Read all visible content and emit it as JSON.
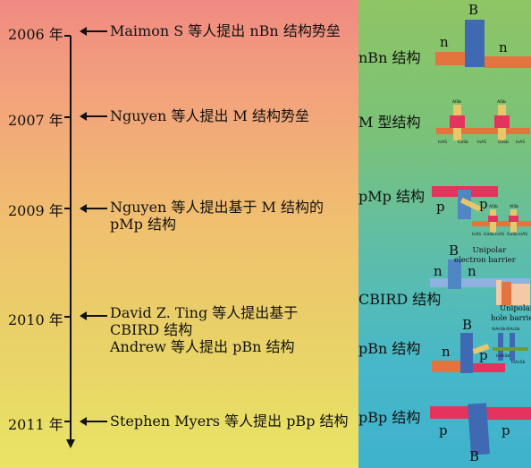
{
  "timeline": [
    {
      "year": "2006 年",
      "event": [
        "Maimon S 等人提出 nBn 结构势垒"
      ]
    },
    {
      "year": "2007 年",
      "event": [
        "Nguyen 等人提出 M 结构势垒"
      ]
    },
    {
      "year": "2009 年",
      "event": [
        "Nguyen 等人提出基于 M 结构的",
        "pMp 结构"
      ]
    },
    {
      "year": "2010 年",
      "event": [
        "David Z. Ting 等人提出基于",
        "CBIRD 结构",
        "Andrew 等人提出 pBn 结构"
      ]
    },
    {
      "year": "2011 年",
      "event": [
        "Stephen Myers 等人提出 pBp 结构"
      ]
    }
  ],
  "structures": {
    "nbn": {
      "label": "nBn 结构",
      "b": "B",
      "n_left": "n",
      "n_right": "n"
    },
    "m": {
      "label": "M 型结构",
      "layers": [
        "InAS",
        "GaSb",
        "InAS",
        "GaSb",
        "InAS"
      ],
      "alsb": "AlSb"
    },
    "pmp": {
      "label": "pMp 结构",
      "p_left": "p",
      "p_right": "p",
      "layers": [
        "InAS",
        "GaSb",
        "InAS",
        "GaSb",
        "InAS"
      ],
      "alsb": "AlSb"
    },
    "cbird": {
      "label": "CBIRD 结构",
      "b": "B",
      "n_left": "n",
      "n_right": "n",
      "ebarrier": [
        "Unipolar",
        "electron barrier"
      ],
      "hbarrier": [
        "Unipolar",
        "hole barrier"
      ],
      "layers": [
        "AlAsSb",
        "AlAsSb",
        "InAsSb",
        "InAsSb"
      ]
    },
    "pbn": {
      "label": "pBn 结构",
      "b": "B",
      "n": "n",
      "p": "p"
    },
    "pbp": {
      "label": "pBp 结构",
      "b": "B",
      "p_left": "p",
      "p_right": "p"
    }
  }
}
